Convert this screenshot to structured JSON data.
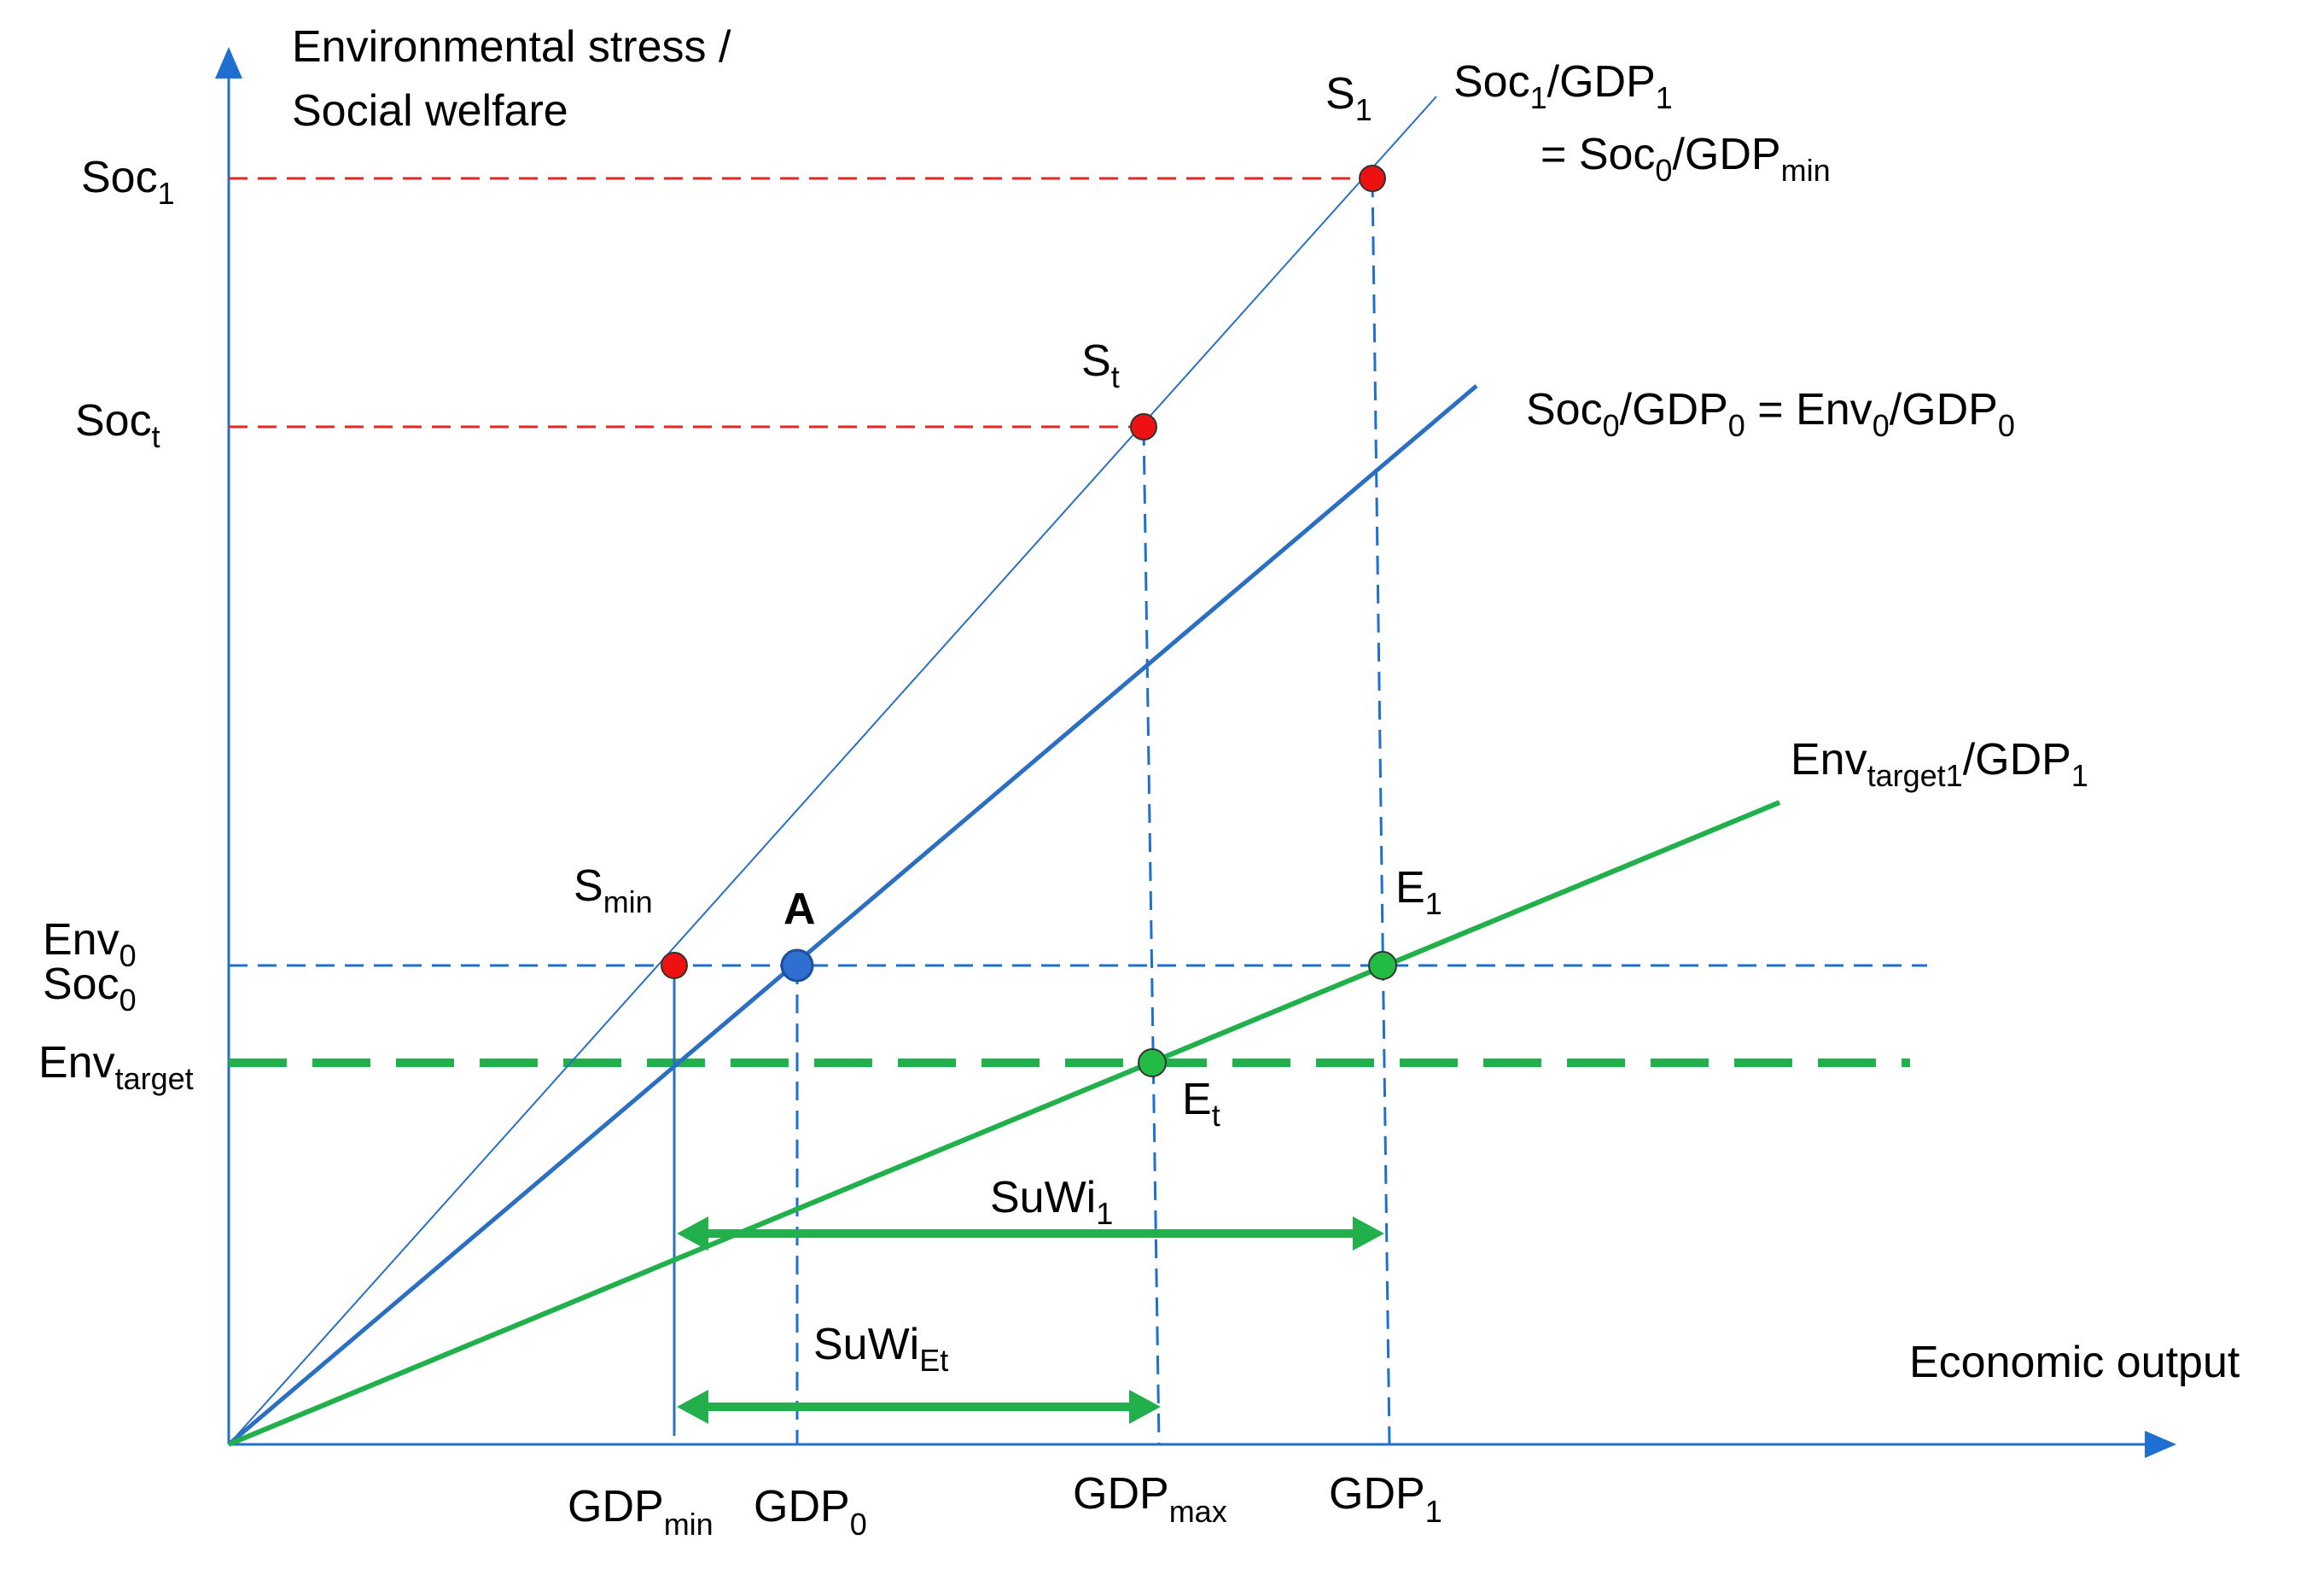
{
  "colors": {
    "axis": "#1f6fd1",
    "blue": "#2a6fc2",
    "red_dash": "#e32626",
    "green": "#21b04b",
    "red_point": "#ee1111",
    "blue_point": "#2f6fd0",
    "green_point": "#22bb44"
  },
  "axes": {
    "y_title_line1": "Environmental stress /",
    "y_title_line2": "Social welfare",
    "x_title": "Economic output"
  },
  "y_labels": {
    "soc1": {
      "main": "Soc",
      "sub": "1"
    },
    "soct": {
      "main": "Soc",
      "sub": "t"
    },
    "env0": {
      "main": "Env",
      "sub": "0"
    },
    "soc0": {
      "main": "Soc",
      "sub": "0"
    },
    "envtarget": {
      "main": "Env",
      "sub": "target"
    }
  },
  "x_labels": {
    "gdpmin": {
      "main": "GDP",
      "sub": "min"
    },
    "gdp0": {
      "main": "GDP",
      "sub": "0"
    },
    "gdpmax": {
      "main": "GDP",
      "sub": "max"
    },
    "gdp1": {
      "main": "GDP",
      "sub": "1"
    }
  },
  "points": {
    "s1": {
      "main": "S",
      "sub": "1"
    },
    "st": {
      "main": "S",
      "sub": "t"
    },
    "smin": {
      "main": "S",
      "sub": "min"
    },
    "a": "A",
    "e1": {
      "main": "E",
      "sub": "1"
    },
    "et": {
      "main": "E",
      "sub": "t"
    }
  },
  "line_labels": {
    "soc1_line": {
      "a": "Soc",
      "a_sub": "1",
      "b": "/GDP",
      "b_sub": "1"
    },
    "soc1_eq": {
      "a": "= Soc",
      "a_sub": "0",
      "b": "/GDP",
      "b_sub": "min"
    },
    "soc0_line": {
      "a": "Soc",
      "a_sub": "0",
      "b": "/GDP",
      "b_sub": "0",
      "c": " = Env",
      "c_sub": "0",
      "d": "/GDP",
      "d_sub": "0"
    },
    "env_line": {
      "a": "Env",
      "a_sub": "target1",
      "b": "/GDP",
      "b_sub": "1"
    }
  },
  "intervals": {
    "suwi1": {
      "main": "SuWi",
      "sub": "1"
    },
    "suwiet": {
      "main": "SuWi",
      "sub": "Et"
    }
  }
}
